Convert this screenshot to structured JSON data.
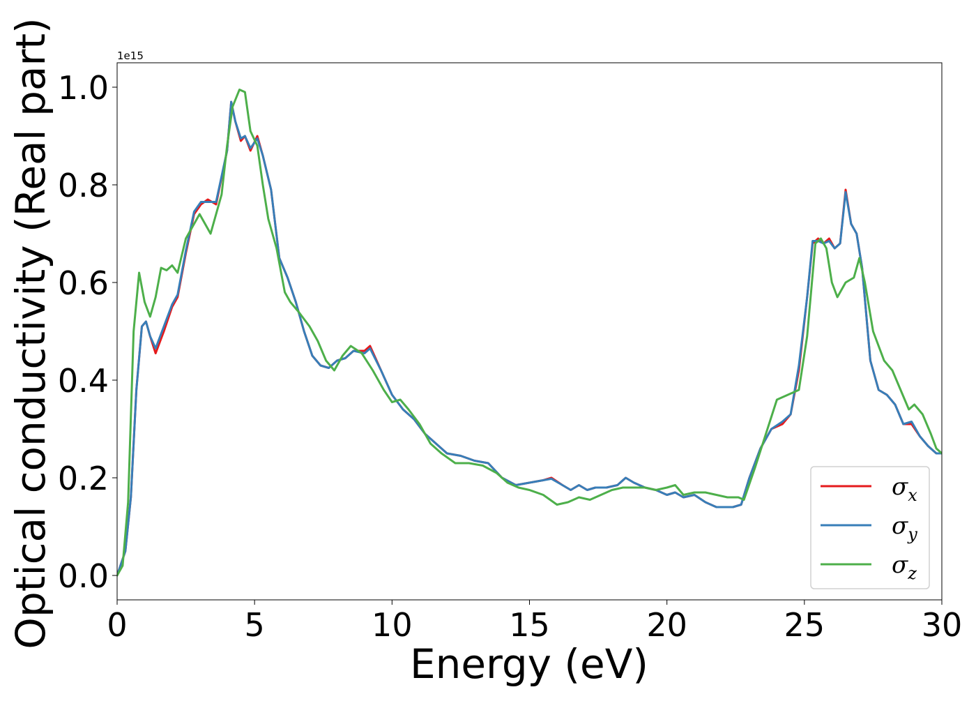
{
  "chart_data": {
    "type": "line",
    "xlabel": "Energy (eV)",
    "ylabel": "Optical conductivity (Real part)",
    "y_offset_text": "1e15",
    "xlim": [
      0,
      30
    ],
    "ylim": [
      -0.05,
      1.05
    ],
    "y_scale_factor": 1000000000000000.0,
    "x_ticks": [
      0,
      5,
      10,
      15,
      20,
      25,
      30
    ],
    "x_tick_labels": [
      "0",
      "5",
      "10",
      "15",
      "20",
      "25",
      "30"
    ],
    "y_ticks": [
      0.0,
      0.2,
      0.4,
      0.6,
      0.8,
      1.0
    ],
    "y_tick_labels": [
      "0.0",
      "0.2",
      "0.4",
      "0.6",
      "0.8",
      "1.0"
    ],
    "grid": false,
    "legend_position": "bottom-right",
    "series": [
      {
        "name": "σx",
        "name_main": "σ",
        "name_sub": "x",
        "color": "#e41a1c",
        "x": [
          0,
          0.3,
          0.5,
          0.7,
          0.9,
          1.05,
          1.2,
          1.4,
          1.7,
          2.0,
          2.2,
          2.5,
          2.8,
          3.05,
          3.3,
          3.6,
          4.0,
          4.15,
          4.3,
          4.5,
          4.65,
          4.85,
          5.1,
          5.3,
          5.6,
          5.9,
          6.2,
          6.5,
          6.8,
          7.1,
          7.4,
          7.7,
          8.0,
          8.3,
          8.6,
          9.0,
          9.2,
          9.6,
          10.0,
          10.4,
          10.8,
          11.2,
          11.6,
          12.0,
          12.5,
          13.0,
          13.5,
          14.0,
          14.5,
          15.0,
          15.5,
          15.8,
          16.2,
          16.5,
          16.8,
          17.1,
          17.4,
          17.8,
          18.2,
          18.5,
          18.8,
          19.2,
          19.6,
          20.0,
          20.3,
          20.6,
          21.0,
          21.4,
          21.8,
          22.1,
          22.4,
          22.7,
          23.0,
          23.4,
          23.8,
          24.2,
          24.5,
          24.8,
          25.1,
          25.3,
          25.5,
          25.7,
          25.9,
          26.1,
          26.3,
          26.5,
          26.7,
          26.9,
          27.1,
          27.4,
          27.7,
          28.0,
          28.3,
          28.6,
          28.9,
          29.2,
          29.5,
          29.8,
          30.0
        ],
        "y": [
          0.0,
          0.05,
          0.16,
          0.38,
          0.51,
          0.52,
          0.49,
          0.455,
          0.5,
          0.55,
          0.57,
          0.66,
          0.74,
          0.76,
          0.77,
          0.76,
          0.87,
          0.97,
          0.93,
          0.89,
          0.9,
          0.87,
          0.9,
          0.86,
          0.79,
          0.65,
          0.61,
          0.56,
          0.5,
          0.45,
          0.43,
          0.425,
          0.44,
          0.445,
          0.46,
          0.46,
          0.47,
          0.42,
          0.37,
          0.34,
          0.32,
          0.29,
          0.27,
          0.25,
          0.245,
          0.235,
          0.23,
          0.2,
          0.185,
          0.19,
          0.195,
          0.2,
          0.185,
          0.175,
          0.185,
          0.175,
          0.18,
          0.18,
          0.185,
          0.2,
          0.19,
          0.18,
          0.175,
          0.165,
          0.17,
          0.16,
          0.165,
          0.15,
          0.14,
          0.14,
          0.14,
          0.145,
          0.2,
          0.26,
          0.3,
          0.31,
          0.33,
          0.42,
          0.57,
          0.68,
          0.69,
          0.68,
          0.69,
          0.67,
          0.68,
          0.79,
          0.72,
          0.7,
          0.63,
          0.44,
          0.38,
          0.37,
          0.35,
          0.31,
          0.31,
          0.285,
          0.265,
          0.25,
          0.25
        ]
      },
      {
        "name": "σy",
        "name_main": "σ",
        "name_sub": "y",
        "color": "#377eb8",
        "x": [
          0,
          0.3,
          0.5,
          0.7,
          0.9,
          1.05,
          1.2,
          1.4,
          1.7,
          2.0,
          2.2,
          2.5,
          2.8,
          3.05,
          3.3,
          3.6,
          4.0,
          4.15,
          4.3,
          4.5,
          4.65,
          4.85,
          5.1,
          5.3,
          5.6,
          5.9,
          6.2,
          6.5,
          6.8,
          7.1,
          7.4,
          7.7,
          8.0,
          8.3,
          8.6,
          9.0,
          9.2,
          9.6,
          10.0,
          10.4,
          10.8,
          11.2,
          11.6,
          12.0,
          12.5,
          13.0,
          13.5,
          14.0,
          14.5,
          15.0,
          15.5,
          15.8,
          16.2,
          16.5,
          16.8,
          17.1,
          17.4,
          17.8,
          18.2,
          18.5,
          18.8,
          19.2,
          19.6,
          20.0,
          20.3,
          20.6,
          21.0,
          21.4,
          21.8,
          22.1,
          22.4,
          22.7,
          23.0,
          23.4,
          23.8,
          24.2,
          24.5,
          24.8,
          25.1,
          25.3,
          25.5,
          25.7,
          25.9,
          26.1,
          26.3,
          26.5,
          26.7,
          26.9,
          27.1,
          27.4,
          27.7,
          28.0,
          28.3,
          28.6,
          28.9,
          29.2,
          29.5,
          29.8,
          30.0
        ],
        "y": [
          0.0,
          0.05,
          0.16,
          0.38,
          0.51,
          0.52,
          0.49,
          0.465,
          0.51,
          0.555,
          0.575,
          0.665,
          0.745,
          0.765,
          0.765,
          0.765,
          0.87,
          0.97,
          0.93,
          0.895,
          0.9,
          0.875,
          0.895,
          0.86,
          0.79,
          0.65,
          0.61,
          0.56,
          0.5,
          0.45,
          0.43,
          0.425,
          0.44,
          0.445,
          0.46,
          0.455,
          0.465,
          0.42,
          0.37,
          0.34,
          0.32,
          0.29,
          0.27,
          0.25,
          0.245,
          0.235,
          0.23,
          0.2,
          0.185,
          0.19,
          0.195,
          0.198,
          0.185,
          0.175,
          0.185,
          0.175,
          0.18,
          0.18,
          0.185,
          0.2,
          0.19,
          0.18,
          0.175,
          0.165,
          0.17,
          0.16,
          0.165,
          0.15,
          0.14,
          0.14,
          0.14,
          0.145,
          0.2,
          0.26,
          0.3,
          0.315,
          0.33,
          0.43,
          0.57,
          0.685,
          0.685,
          0.68,
          0.685,
          0.67,
          0.68,
          0.785,
          0.72,
          0.7,
          0.63,
          0.44,
          0.38,
          0.37,
          0.35,
          0.31,
          0.315,
          0.285,
          0.265,
          0.25,
          0.25
        ]
      },
      {
        "name": "σz",
        "name_main": "σ",
        "name_sub": "z",
        "color": "#4daf4a",
        "x": [
          0,
          0.2,
          0.4,
          0.6,
          0.8,
          1.0,
          1.2,
          1.4,
          1.6,
          1.8,
          2.0,
          2.2,
          2.5,
          2.8,
          3.0,
          3.4,
          3.8,
          4.0,
          4.2,
          4.45,
          4.65,
          4.85,
          5.1,
          5.3,
          5.5,
          5.8,
          6.1,
          6.3,
          6.6,
          7.0,
          7.3,
          7.6,
          7.9,
          8.2,
          8.5,
          8.9,
          9.3,
          9.7,
          10.0,
          10.3,
          10.6,
          11.0,
          11.4,
          11.8,
          12.3,
          12.8,
          13.3,
          13.8,
          14.2,
          14.6,
          15.0,
          15.5,
          16.0,
          16.4,
          16.8,
          17.2,
          17.6,
          18.0,
          18.4,
          18.8,
          19.2,
          19.6,
          20.0,
          20.3,
          20.6,
          21.0,
          21.4,
          21.8,
          22.2,
          22.6,
          22.8,
          23.2,
          23.6,
          24.0,
          24.4,
          24.8,
          25.1,
          25.4,
          25.6,
          25.8,
          26.0,
          26.2,
          26.5,
          26.8,
          27.0,
          27.2,
          27.5,
          27.9,
          28.2,
          28.5,
          28.8,
          29.0,
          29.3,
          29.6,
          29.8,
          30.0
        ],
        "y": [
          0.0,
          0.02,
          0.15,
          0.5,
          0.62,
          0.56,
          0.53,
          0.57,
          0.63,
          0.625,
          0.635,
          0.62,
          0.69,
          0.72,
          0.74,
          0.7,
          0.78,
          0.88,
          0.96,
          0.995,
          0.99,
          0.91,
          0.88,
          0.8,
          0.73,
          0.67,
          0.58,
          0.56,
          0.54,
          0.51,
          0.48,
          0.44,
          0.42,
          0.45,
          0.47,
          0.455,
          0.42,
          0.38,
          0.355,
          0.36,
          0.34,
          0.31,
          0.27,
          0.25,
          0.23,
          0.23,
          0.225,
          0.21,
          0.19,
          0.18,
          0.175,
          0.165,
          0.145,
          0.15,
          0.16,
          0.155,
          0.165,
          0.175,
          0.18,
          0.18,
          0.18,
          0.175,
          0.18,
          0.185,
          0.165,
          0.17,
          0.17,
          0.165,
          0.16,
          0.16,
          0.155,
          0.22,
          0.29,
          0.36,
          0.37,
          0.38,
          0.49,
          0.68,
          0.69,
          0.67,
          0.6,
          0.57,
          0.6,
          0.61,
          0.65,
          0.6,
          0.5,
          0.44,
          0.42,
          0.38,
          0.34,
          0.35,
          0.33,
          0.29,
          0.26,
          0.25
        ]
      }
    ]
  }
}
